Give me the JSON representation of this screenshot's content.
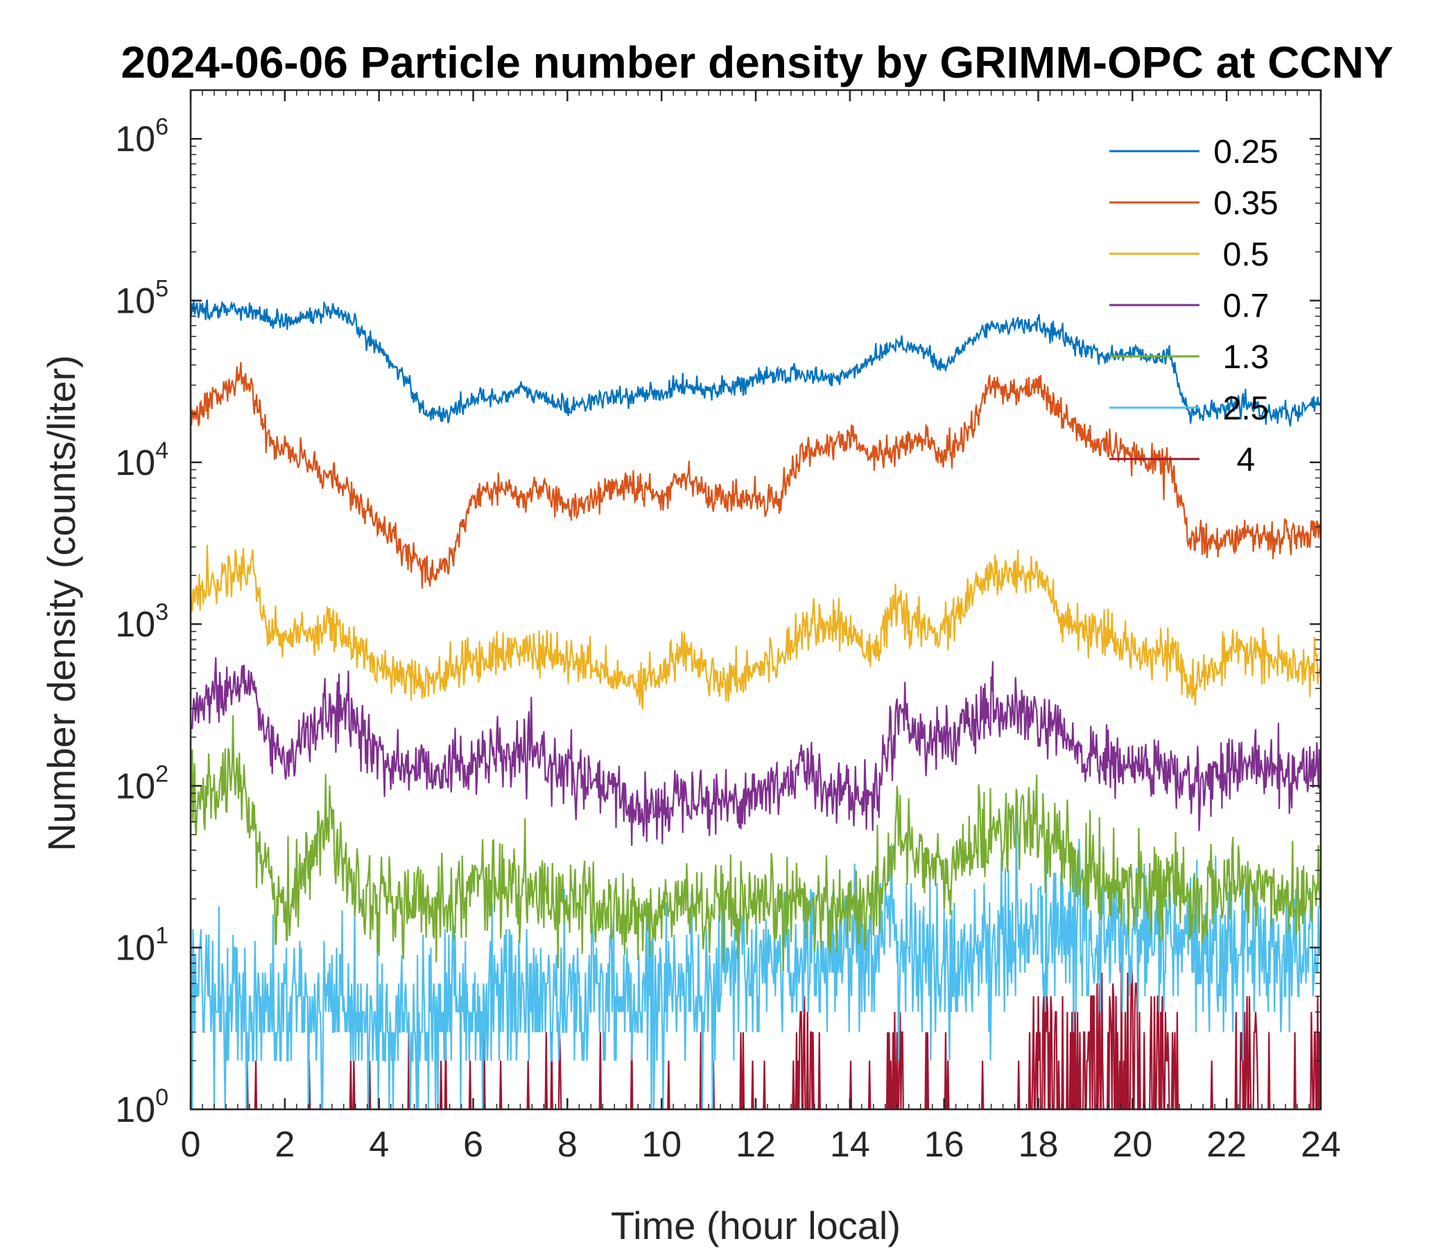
{
  "chart_data": {
    "type": "line",
    "title": "2024-06-06 Particle number density by GRIMM-OPC at CCNY",
    "xlabel": "Time (hour local)",
    "ylabel": "Number density (counts/liter)",
    "xlim": [
      0,
      24
    ],
    "ylim": [
      1,
      2000000
    ],
    "yscale": "log",
    "grid": false,
    "legend_position": "top-right",
    "x_ticks": [
      0,
      2,
      4,
      6,
      8,
      10,
      12,
      14,
      16,
      18,
      20,
      22,
      24
    ],
    "x_tick_labels": [
      "0",
      "2",
      "4",
      "6",
      "8",
      "10",
      "12",
      "14",
      "16",
      "18",
      "20",
      "22",
      "24"
    ],
    "y_ticks": [
      1,
      10,
      100,
      1000,
      10000,
      100000,
      1000000
    ],
    "y_tick_base": "10",
    "y_tick_exponents": [
      "0",
      "1",
      "2",
      "3",
      "4",
      "5",
      "6"
    ],
    "x": [
      0,
      0.5,
      1,
      1.3,
      1.6,
      2,
      2.5,
      3,
      3.5,
      4,
      4.5,
      5,
      5.5,
      6,
      6.5,
      7,
      7.5,
      8,
      8.5,
      9,
      9.5,
      10,
      10.5,
      11,
      11.5,
      12,
      12.5,
      13,
      13.5,
      14,
      14.5,
      15,
      15.5,
      16,
      16.5,
      17,
      17.5,
      18,
      18.5,
      19,
      19.5,
      20,
      20.5,
      20.8,
      21.2,
      21.6,
      22,
      22.5,
      23,
      23.5,
      24
    ],
    "series": [
      {
        "name": "0.25",
        "color": "#0072BD",
        "noise": 0.15,
        "values": [
          88000,
          87000,
          90000,
          85000,
          78000,
          75000,
          80000,
          85000,
          70000,
          50000,
          35000,
          20000,
          20000,
          25000,
          25000,
          28000,
          25000,
          22000,
          24000,
          25000,
          26000,
          27000,
          30000,
          28000,
          30000,
          32000,
          35000,
          35000,
          33000,
          35000,
          45000,
          55000,
          50000,
          38000,
          55000,
          70000,
          70000,
          70000,
          60000,
          50000,
          45000,
          48000,
          45000,
          45000,
          20000,
          20000,
          22000,
          22000,
          20000,
          20000,
          24000
        ]
      },
      {
        "name": "0.35",
        "color": "#D95319",
        "noise": 0.25,
        "values": [
          20000,
          25000,
          32000,
          30000,
          14000,
          12000,
          10000,
          8000,
          6000,
          4000,
          3000,
          2000,
          2500,
          6000,
          7000,
          6000,
          7000,
          5000,
          6000,
          7000,
          7000,
          6000,
          9000,
          6000,
          6000,
          6000,
          6000,
          12000,
          12000,
          14000,
          11000,
          12000,
          14000,
          11000,
          15000,
          30000,
          28000,
          30000,
          20000,
          14000,
          12000,
          11000,
          10000,
          10000,
          3500,
          3200,
          3500,
          3500,
          3500,
          3300,
          4000
        ]
      },
      {
        "name": "0.5",
        "color": "#EDB120",
        "noise": 0.35,
        "values": [
          1500,
          1800,
          2200,
          2300,
          1000,
          800,
          900,
          1000,
          700,
          550,
          500,
          450,
          500,
          600,
          650,
          700,
          650,
          600,
          550,
          450,
          450,
          500,
          700,
          500,
          450,
          550,
          600,
          1000,
          1000,
          900,
          700,
          1300,
          900,
          900,
          1400,
          2000,
          2000,
          2200,
          1000,
          900,
          800,
          700,
          700,
          700,
          400,
          500,
          600,
          700,
          600,
          500,
          550
        ]
      },
      {
        "name": "0.7",
        "color": "#7E2F8E",
        "noise": 0.5,
        "values": [
          300,
          350,
          400,
          450,
          200,
          150,
          200,
          300,
          250,
          150,
          130,
          130,
          130,
          140,
          150,
          150,
          150,
          120,
          100,
          90,
          70,
          70,
          100,
          80,
          80,
          90,
          100,
          130,
          100,
          90,
          80,
          300,
          200,
          200,
          220,
          280,
          280,
          250,
          200,
          150,
          140,
          130,
          130,
          120,
          100,
          110,
          130,
          140,
          120,
          120,
          130
        ]
      },
      {
        "name": "1.3",
        "color": "#77AC30",
        "noise": 0.7,
        "values": [
          80,
          90,
          100,
          70,
          30,
          15,
          40,
          60,
          25,
          20,
          18,
          18,
          20,
          25,
          25,
          22,
          20,
          20,
          18,
          16,
          15,
          16,
          20,
          16,
          16,
          16,
          18,
          20,
          18,
          18,
          18,
          50,
          40,
          25,
          40,
          55,
          55,
          55,
          40,
          30,
          25,
          25,
          25,
          25,
          18,
          20,
          25,
          25,
          22,
          20,
          25
        ]
      },
      {
        "name": "2.5",
        "color": "#4DBEEE",
        "noise": 1.0,
        "values": [
          6,
          5,
          5,
          4,
          4,
          4,
          4,
          4,
          4,
          3,
          3,
          3,
          4,
          4,
          5,
          5,
          5,
          5,
          5,
          5,
          5,
          6,
          6,
          6,
          7,
          7,
          8,
          9,
          9,
          10,
          11,
          12,
          8,
          7,
          9,
          10,
          12,
          12,
          12,
          12,
          11,
          11,
          11,
          11,
          9,
          9,
          10,
          10,
          10,
          9,
          10
        ]
      },
      {
        "name": "4",
        "color": "#A2142F",
        "noise": 0.6,
        "values": [
          1,
          1,
          1,
          1,
          1,
          1,
          1,
          1,
          1,
          1,
          1,
          1,
          1,
          1,
          1,
          1,
          1,
          1,
          1,
          1,
          1,
          1,
          1,
          1,
          1,
          1,
          1,
          2,
          1,
          1,
          1,
          2,
          1,
          1,
          1,
          1,
          1,
          2,
          2,
          2,
          3,
          3,
          2,
          2,
          1,
          1,
          1,
          2,
          1,
          1,
          2
        ]
      }
    ]
  }
}
